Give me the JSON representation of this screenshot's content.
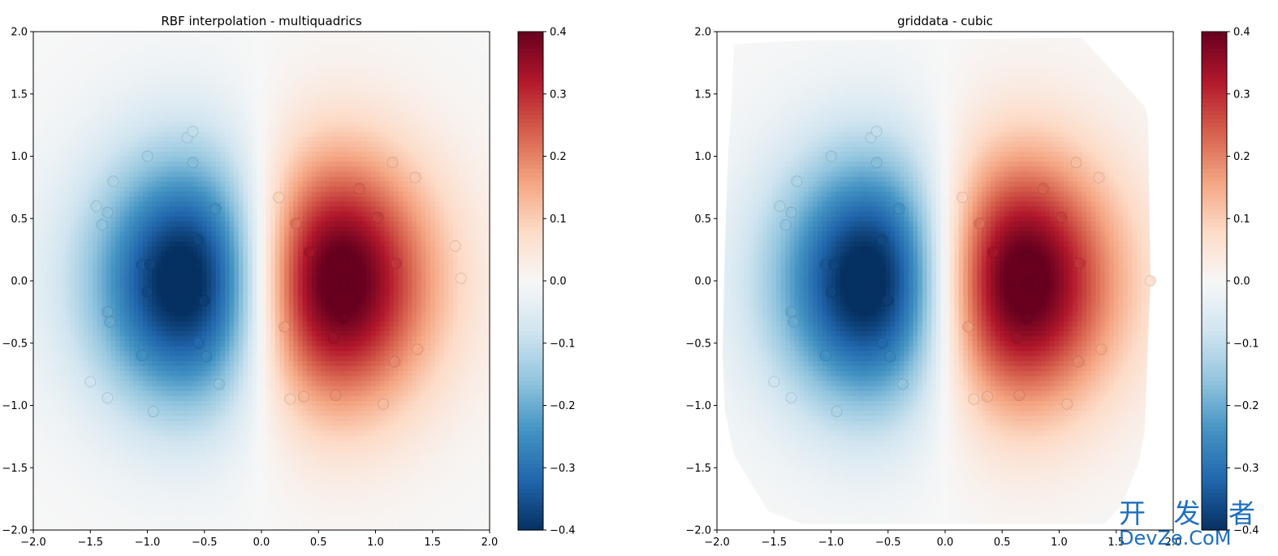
{
  "figure": {
    "background": "#ffffff",
    "text_color": "#000000"
  },
  "colormap": {
    "name": "RdBu_r",
    "stops": [
      [
        0.0,
        "#053061"
      ],
      [
        0.1,
        "#2166ac"
      ],
      [
        0.2,
        "#4393c3"
      ],
      [
        0.3,
        "#92c5de"
      ],
      [
        0.4,
        "#d1e5f0"
      ],
      [
        0.5,
        "#f7f7f7"
      ],
      [
        0.6,
        "#fddbc7"
      ],
      [
        0.7,
        "#f4a582"
      ],
      [
        0.8,
        "#d6604d"
      ],
      [
        0.9,
        "#b2182b"
      ],
      [
        1.0,
        "#67001f"
      ]
    ]
  },
  "chart_data": [
    {
      "type": "heatmap",
      "title": "RBF interpolation - multiquadrics",
      "xlabel": "",
      "ylabel": "",
      "xlim": [
        -2.0,
        2.0
      ],
      "ylim": [
        -2.0,
        2.0
      ],
      "x_ticks": [
        "−2.0",
        "−1.5",
        "−1.0",
        "−0.5",
        "0.0",
        "0.5",
        "1.0",
        "1.5",
        "2.0"
      ],
      "y_ticks": [
        "−2.0",
        "−1.5",
        "−1.0",
        "−0.5",
        "0.0",
        "0.5",
        "1.0",
        "1.5",
        "2.0"
      ],
      "field": "z = x * exp(-x^2 - y^2)",
      "grid": false,
      "colorbar": {
        "vmin": -0.4,
        "vmax": 0.4,
        "ticks": [
          "−0.4",
          "−0.3",
          "−0.2",
          "−0.1",
          "0.0",
          "0.1",
          "0.2",
          "0.3",
          "0.4"
        ]
      },
      "sample_points": [
        [
          -1.3,
          0.8
        ],
        [
          -1.45,
          0.6
        ],
        [
          -1.35,
          0.55
        ],
        [
          -1.4,
          0.45
        ],
        [
          -1.35,
          -0.25
        ],
        [
          -1.33,
          -0.33
        ],
        [
          -1.0,
          1.0
        ],
        [
          -0.65,
          1.15
        ],
        [
          -0.6,
          1.2
        ],
        [
          -0.6,
          0.95
        ],
        [
          -0.4,
          0.58
        ],
        [
          -0.55,
          0.33
        ],
        [
          -1.05,
          0.13
        ],
        [
          -0.98,
          0.13
        ],
        [
          -1.0,
          -0.09
        ],
        [
          -0.5,
          -0.16
        ],
        [
          -1.05,
          -0.6
        ],
        [
          -0.55,
          -0.5
        ],
        [
          -0.48,
          -0.61
        ],
        [
          -0.37,
          -0.83
        ],
        [
          -0.95,
          -1.05
        ],
        [
          -1.35,
          -0.94
        ],
        [
          -1.5,
          -0.81
        ],
        [
          0.15,
          0.67
        ],
        [
          0.3,
          0.46
        ],
        [
          0.42,
          0.23
        ],
        [
          0.72,
          0.19
        ],
        [
          0.86,
          0.74
        ],
        [
          1.02,
          0.51
        ],
        [
          1.18,
          0.14
        ],
        [
          1.15,
          0.95
        ],
        [
          1.35,
          0.83
        ],
        [
          0.72,
          -0.02
        ],
        [
          0.72,
          -0.3
        ],
        [
          0.63,
          -0.46
        ],
        [
          0.2,
          -0.37
        ],
        [
          1.17,
          -0.65
        ],
        [
          1.37,
          -0.55
        ],
        [
          0.25,
          -0.95
        ],
        [
          0.37,
          -0.93
        ],
        [
          0.65,
          -0.92
        ],
        [
          1.07,
          -0.99
        ],
        [
          1.7,
          0.28
        ],
        [
          1.75,
          0.02
        ]
      ]
    },
    {
      "type": "heatmap",
      "title": "griddata - cubic",
      "xlabel": "",
      "ylabel": "",
      "xlim": [
        -2.0,
        2.0
      ],
      "ylim": [
        -2.0,
        2.0
      ],
      "x_ticks": [
        "−2.0",
        "−1.5",
        "−1.0",
        "−0.5",
        "0.0",
        "0.5",
        "1.0",
        "1.5",
        "2.0"
      ],
      "y_ticks": [
        "−2.0",
        "−1.5",
        "−1.0",
        "−0.5",
        "0.0",
        "0.5",
        "1.0",
        "1.5",
        "2.0"
      ],
      "field": "z = x * exp(-x^2 - y^2)",
      "grid": false,
      "convex_hull_only": true,
      "colorbar": {
        "vmin": -0.4,
        "vmax": 0.4,
        "ticks": [
          "−0.4",
          "−0.3",
          "−0.2",
          "−0.1",
          "0.0",
          "0.1",
          "0.2",
          "0.3",
          "0.4"
        ]
      },
      "hull": [
        [
          -1.85,
          1.9
        ],
        [
          -1.2,
          1.93
        ],
        [
          1.2,
          1.95
        ],
        [
          1.25,
          1.9
        ],
        [
          1.75,
          1.4
        ],
        [
          1.78,
          1.3
        ],
        [
          1.8,
          0.0
        ],
        [
          1.75,
          -1.2
        ],
        [
          1.7,
          -1.45
        ],
        [
          1.55,
          -1.8
        ],
        [
          1.4,
          -1.95
        ],
        [
          -1.25,
          -1.95
        ],
        [
          -1.55,
          -1.85
        ],
        [
          -1.85,
          -1.4
        ],
        [
          -1.93,
          -1.05
        ],
        [
          -1.95,
          -0.6
        ],
        [
          -1.93,
          0.3
        ],
        [
          -1.9,
          1.05
        ],
        [
          -1.88,
          1.3
        ]
      ],
      "sample_points": [
        [
          -1.3,
          0.8
        ],
        [
          -1.45,
          0.6
        ],
        [
          -1.35,
          0.55
        ],
        [
          -1.4,
          0.45
        ],
        [
          -1.35,
          -0.25
        ],
        [
          -1.33,
          -0.33
        ],
        [
          -1.0,
          1.0
        ],
        [
          -0.65,
          1.15
        ],
        [
          -0.6,
          1.2
        ],
        [
          -0.6,
          0.95
        ],
        [
          -0.4,
          0.58
        ],
        [
          -0.55,
          0.33
        ],
        [
          -1.05,
          0.13
        ],
        [
          -0.98,
          0.13
        ],
        [
          -1.0,
          -0.09
        ],
        [
          -0.5,
          -0.16
        ],
        [
          -1.05,
          -0.6
        ],
        [
          -0.55,
          -0.5
        ],
        [
          -0.48,
          -0.61
        ],
        [
          -0.37,
          -0.83
        ],
        [
          -0.95,
          -1.05
        ],
        [
          -1.35,
          -0.94
        ],
        [
          -1.5,
          -0.81
        ],
        [
          0.15,
          0.67
        ],
        [
          0.3,
          0.46
        ],
        [
          0.42,
          0.23
        ],
        [
          0.72,
          0.19
        ],
        [
          0.86,
          0.74
        ],
        [
          1.02,
          0.51
        ],
        [
          1.18,
          0.14
        ],
        [
          1.15,
          0.95
        ],
        [
          1.35,
          0.83
        ],
        [
          0.72,
          -0.02
        ],
        [
          0.72,
          -0.3
        ],
        [
          0.63,
          -0.46
        ],
        [
          0.2,
          -0.37
        ],
        [
          1.17,
          -0.65
        ],
        [
          1.37,
          -0.55
        ],
        [
          0.25,
          -0.95
        ],
        [
          0.37,
          -0.93
        ],
        [
          0.65,
          -0.92
        ],
        [
          1.07,
          -0.99
        ],
        [
          1.8,
          0.0
        ]
      ]
    }
  ],
  "watermark": {
    "line1": "开 发 者",
    "line2": "DevZe.CoM"
  }
}
